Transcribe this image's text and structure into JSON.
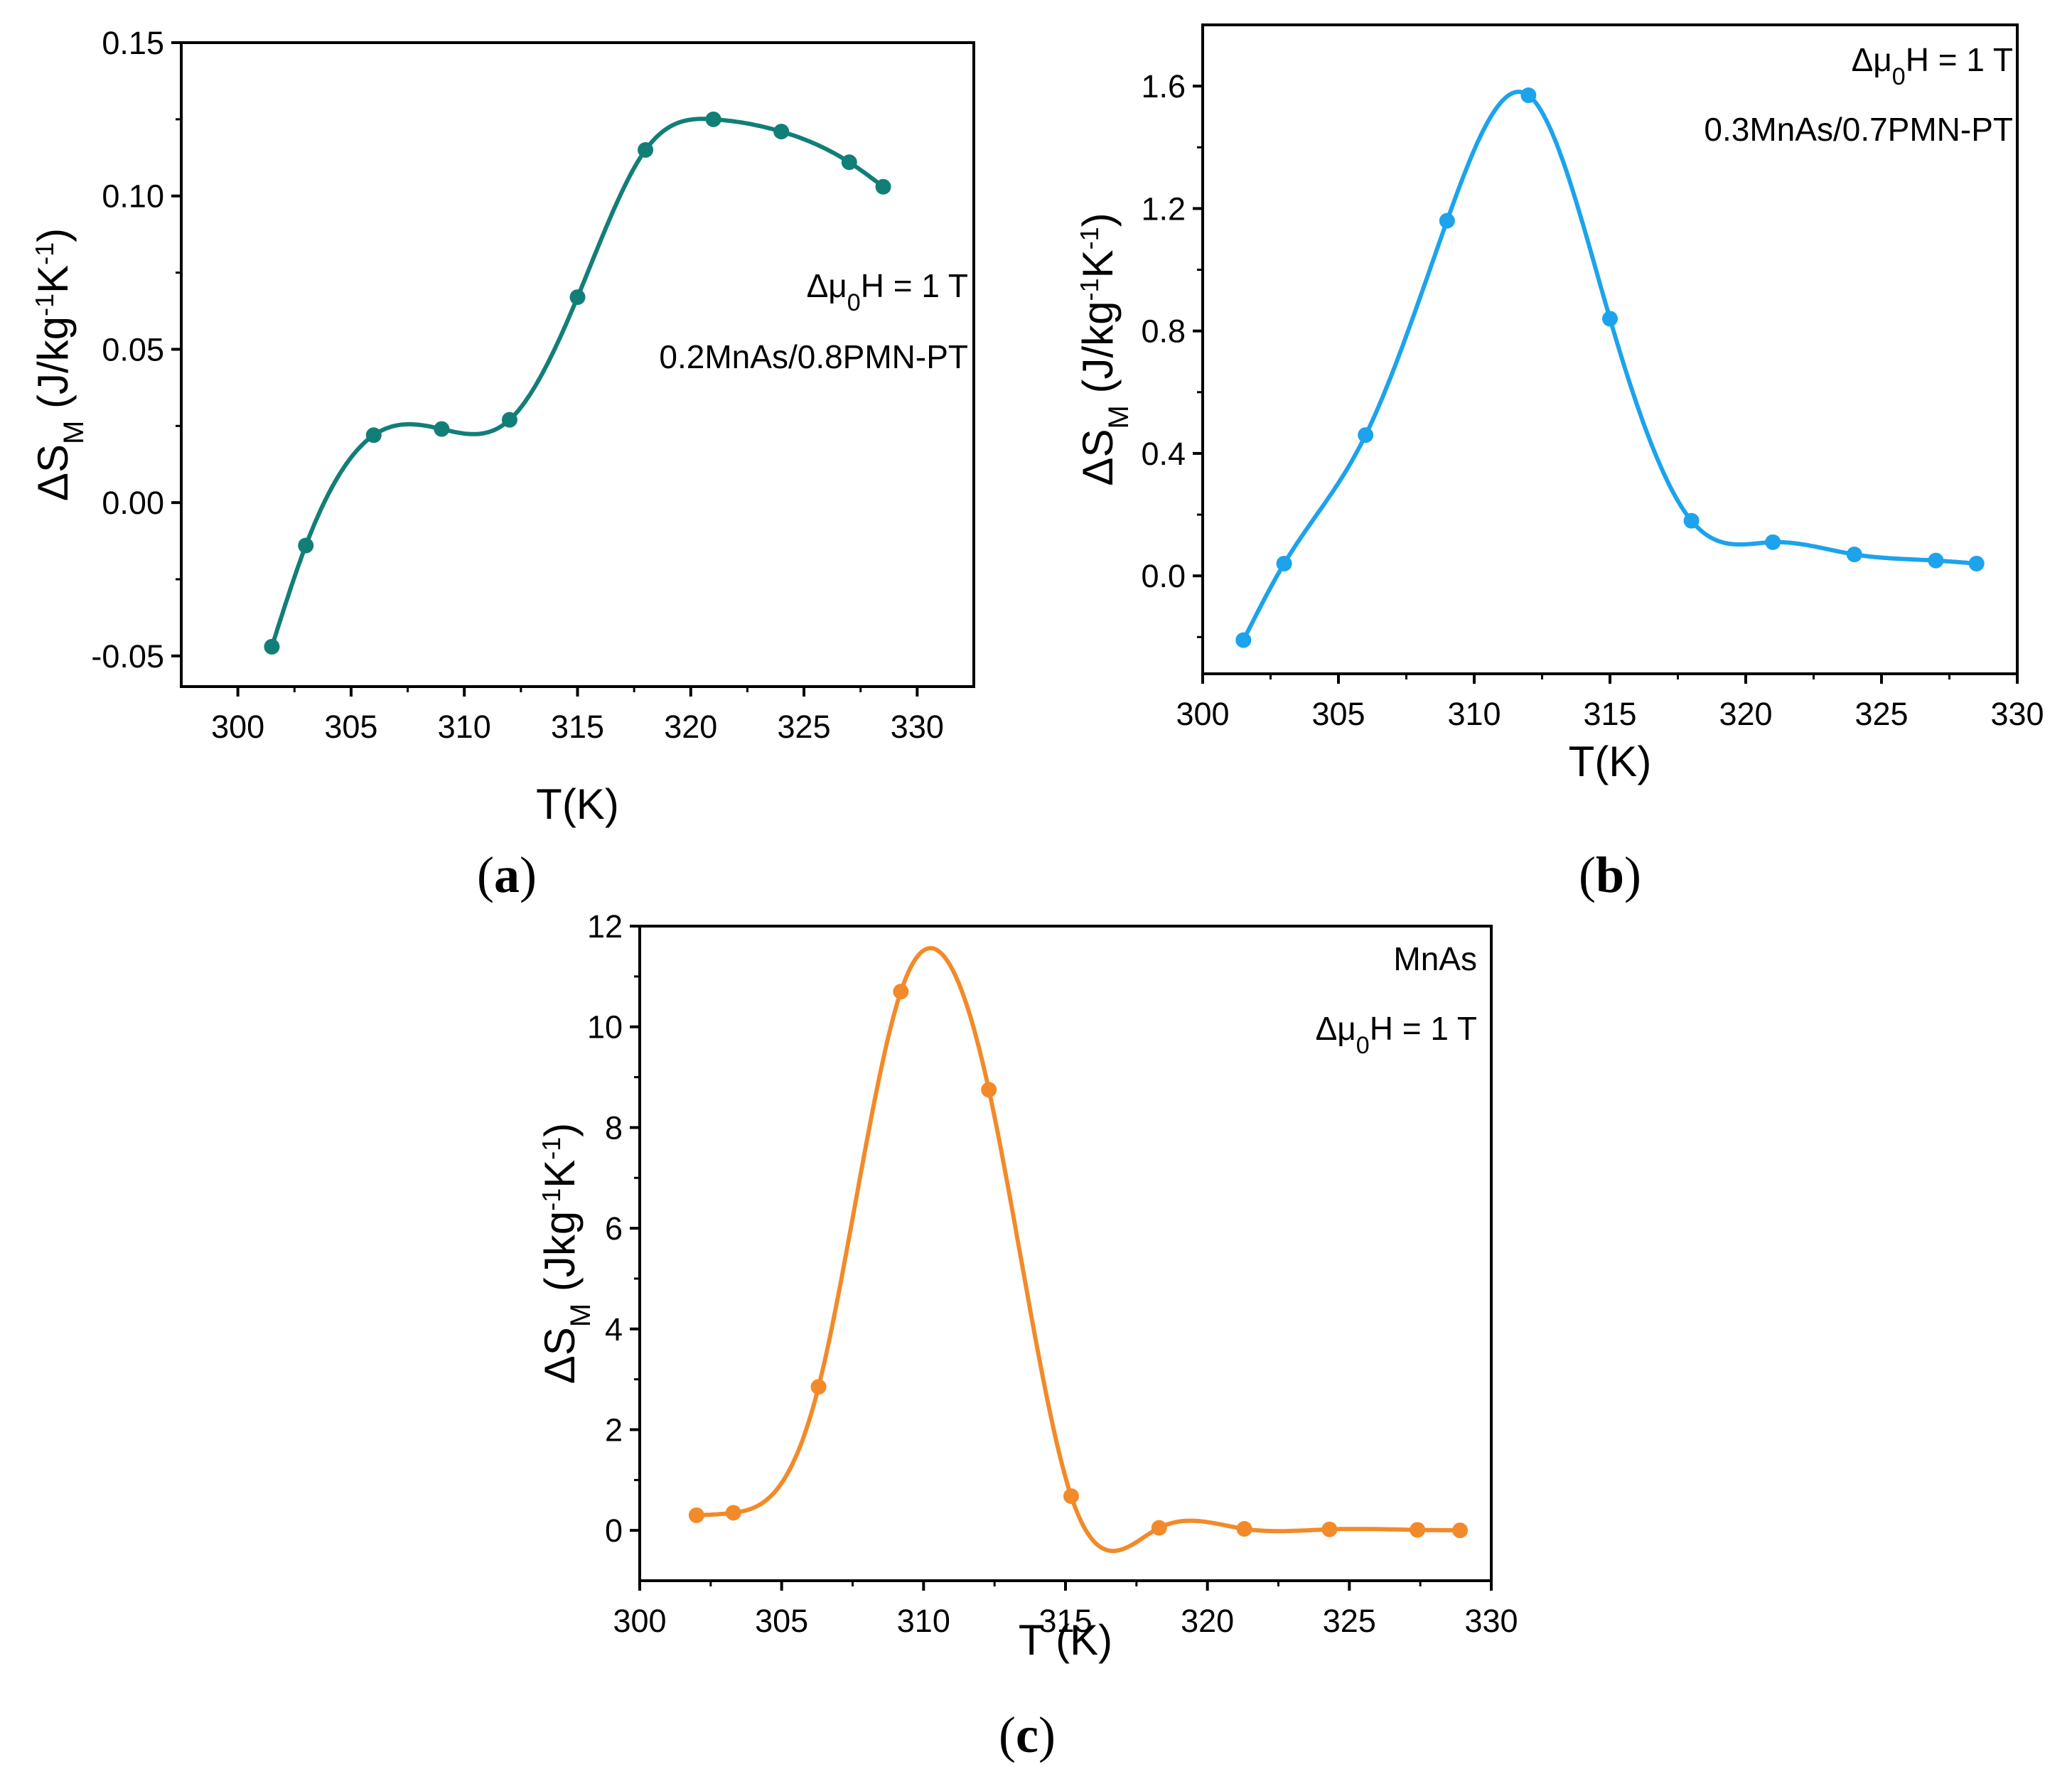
{
  "chart_data": [
    {
      "id": "a",
      "type": "line",
      "panel_label": "(a)",
      "series": [
        {
          "name": "0.2MnAs/0.8PMN-PT",
          "color": "#127e78",
          "x": [
            301.5,
            303.0,
            306.0,
            309.0,
            312.0,
            315.0,
            318.0,
            321.0,
            324.0,
            327.0,
            328.5
          ],
          "y": [
            -0.047,
            -0.014,
            0.022,
            0.024,
            0.027,
            0.067,
            0.115,
            0.125,
            0.121,
            0.111,
            0.103
          ]
        }
      ],
      "xlabel": "T(K)",
      "ylabel_main": "ΔS",
      "ylabel_sub": "M",
      "ylabel_unit": "(J/kg",
      "ylabel_exp1": "-1",
      "ylabel_unit2": "K",
      "ylabel_exp2": "-1",
      "ylabel_close": ")",
      "xlim": [
        297.5,
        332.5
      ],
      "ylim": [
        -0.06,
        0.15
      ],
      "xticks": [
        300,
        305,
        310,
        315,
        320,
        325,
        330
      ],
      "yticks": [
        -0.05,
        0.0,
        0.05,
        0.1,
        0.15
      ],
      "xtick_labels": [
        "300",
        "305",
        "310",
        "315",
        "320",
        "325",
        "330"
      ],
      "ytick_labels": [
        "-0.05",
        "0.00",
        "0.05",
        "0.10",
        "0.15"
      ],
      "annotations": [
        {
          "pre": "Δμ",
          "sub": "0",
          "post": "H = 1 T"
        },
        {
          "text": "0.2MnAs/0.8PMN-PT"
        }
      ]
    },
    {
      "id": "b",
      "type": "line",
      "panel_label": "(b)",
      "series": [
        {
          "name": "0.3MnAs/0.7PMN-PT",
          "color": "#1ca3ec",
          "x": [
            301.5,
            303.0,
            306.0,
            309.0,
            312.0,
            315.0,
            318.0,
            321.0,
            324.0,
            327.0,
            328.5
          ],
          "y": [
            -0.21,
            0.04,
            0.46,
            1.16,
            1.57,
            0.84,
            0.18,
            0.11,
            0.07,
            0.05,
            0.04
          ]
        }
      ],
      "xlabel": "T(K)",
      "ylabel_main": "ΔS",
      "ylabel_sub": "M",
      "ylabel_unit": "(J/kg",
      "ylabel_exp1": "-1",
      "ylabel_unit2": "K",
      "ylabel_exp2": "-1",
      "ylabel_close": ")",
      "xlim": [
        300,
        330
      ],
      "ylim": [
        -0.32,
        1.8
      ],
      "xticks": [
        300,
        305,
        310,
        315,
        320,
        325,
        330
      ],
      "yticks": [
        0.0,
        0.4,
        0.8,
        1.2,
        1.6
      ],
      "xtick_labels": [
        "300",
        "305",
        "310",
        "315",
        "320",
        "325",
        "330"
      ],
      "ytick_labels": [
        "0.0",
        "0.4",
        "0.8",
        "1.2",
        "1.6"
      ],
      "annotations": [
        {
          "pre": "Δμ",
          "sub": "0",
          "post": "H = 1 T"
        },
        {
          "text": "0.3MnAs/0.7PMN-PT"
        }
      ]
    },
    {
      "id": "c",
      "type": "line",
      "panel_label": "(c)",
      "series": [
        {
          "name": "MnAs",
          "color": "#f28a2a",
          "x": [
            302.0,
            303.3,
            306.3,
            309.2,
            312.3,
            315.2,
            318.3,
            321.3,
            324.3,
            327.4,
            328.9
          ],
          "y": [
            0.3,
            0.35,
            2.85,
            10.7,
            8.75,
            0.68,
            0.05,
            0.03,
            0.02,
            0.01,
            0.0
          ]
        }
      ],
      "xlabel": "T (K)",
      "ylabel_main": "ΔS",
      "ylabel_sub": "M",
      "ylabel_unit": "(Jkg",
      "ylabel_exp1": "-1",
      "ylabel_unit2": "K",
      "ylabel_exp2": "-1",
      "ylabel_close": ")",
      "xlim": [
        300,
        330
      ],
      "ylim": [
        -1,
        12
      ],
      "xticks": [
        300,
        305,
        310,
        315,
        320,
        325,
        330
      ],
      "yticks": [
        0,
        2,
        4,
        6,
        8,
        10,
        12
      ],
      "xtick_labels": [
        "300",
        "305",
        "310",
        "315",
        "320",
        "325",
        "330"
      ],
      "ytick_labels": [
        "0",
        "2",
        "4",
        "6",
        "8",
        "10",
        "12"
      ],
      "annotations": [
        {
          "text": "MnAs"
        },
        {
          "pre": "Δμ",
          "sub": "0",
          "post": "H = 1 T"
        }
      ]
    }
  ]
}
